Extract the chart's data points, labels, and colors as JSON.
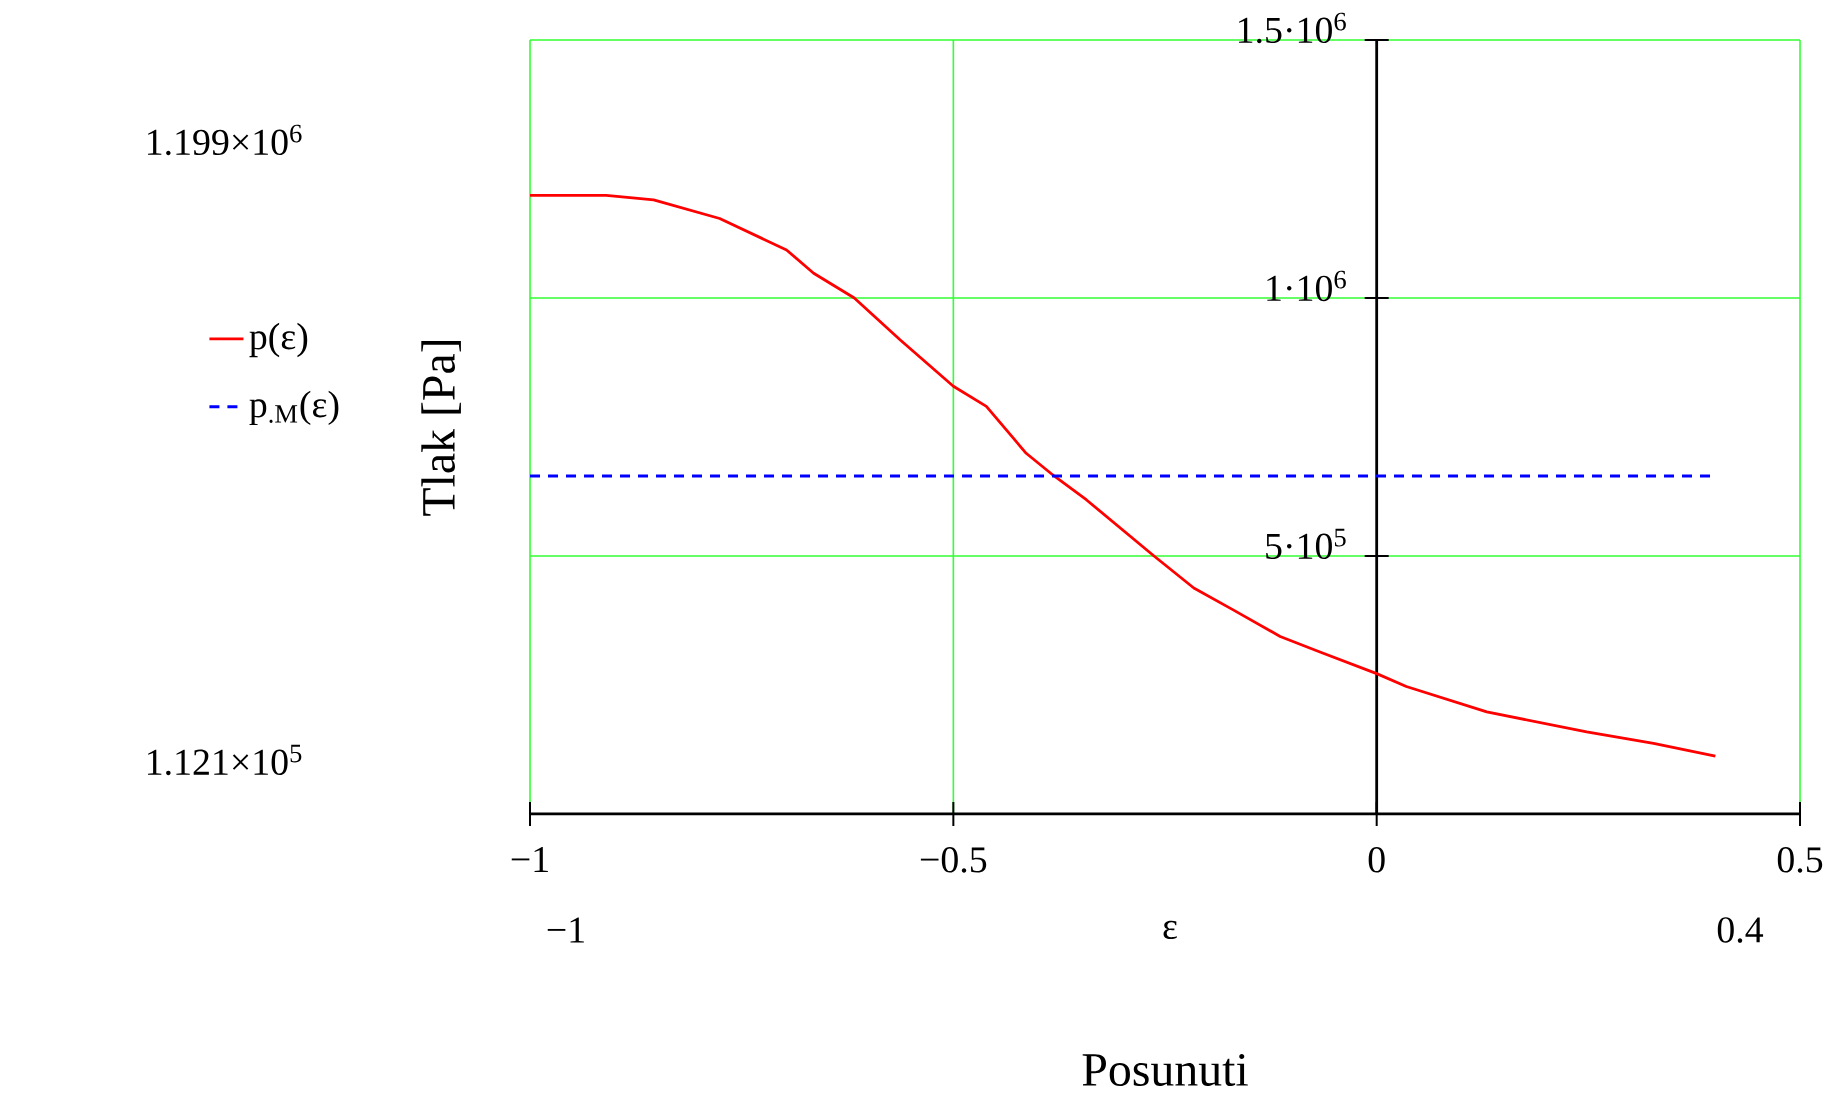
{
  "chart_data": {
    "type": "line",
    "xlabel": "Posunuti",
    "ylabel": "Tlak [Pa]",
    "annotations": [
      "1.199×10$^{6}$",
      "1.121×10$^{5}$",
      "−1",
      "ε",
      "0.4"
    ],
    "series": [
      {
        "name": "p(ε)",
        "color": "#ff0000",
        "line_style": "solid",
        "x": [
          -1,
          -0.91,
          -0.854,
          -0.776,
          -0.697,
          -0.665,
          -0.617,
          -0.563,
          -0.5,
          -0.461,
          -0.414,
          -0.381,
          -0.343,
          -0.263,
          -0.216,
          -0.169,
          -0.114,
          -0.067,
          0,
          0.035,
          0.13,
          0.248,
          0.327,
          0.4
        ],
        "values": [
          1199000,
          1199000,
          1190000,
          1154000,
          1093000,
          1048000,
          1000000,
          919000,
          829000,
          790000,
          699000,
          655000,
          609000,
          500000,
          438000,
          395000,
          344000,
          314000,
          272000,
          247000,
          198000,
          159000,
          137000,
          112100
        ]
      },
      {
        "name": "p$_{.M}$(ε)",
        "color": "#0000ff",
        "line_style": "dashed",
        "x": [
          -1,
          0.4
        ],
        "values": [
          655000,
          655000
        ]
      }
    ],
    "xlim": [
      -1,
      0.5
    ],
    "ylim": [
      0,
      1500000
    ],
    "xticks": [
      {
        "value": -1,
        "label": "−1"
      },
      {
        "value": -0.5,
        "label": "−0.5"
      },
      0,
      0.5
    ],
    "yticks": [
      {
        "value": 500000,
        "label": "5·10$^{5}$"
      },
      {
        "value": 1000000,
        "label": "1·10$^{6}$"
      },
      {
        "value": 1500000,
        "label": "1.5·10$^{6}$"
      }
    ],
    "grid": true,
    "legend": "left"
  }
}
